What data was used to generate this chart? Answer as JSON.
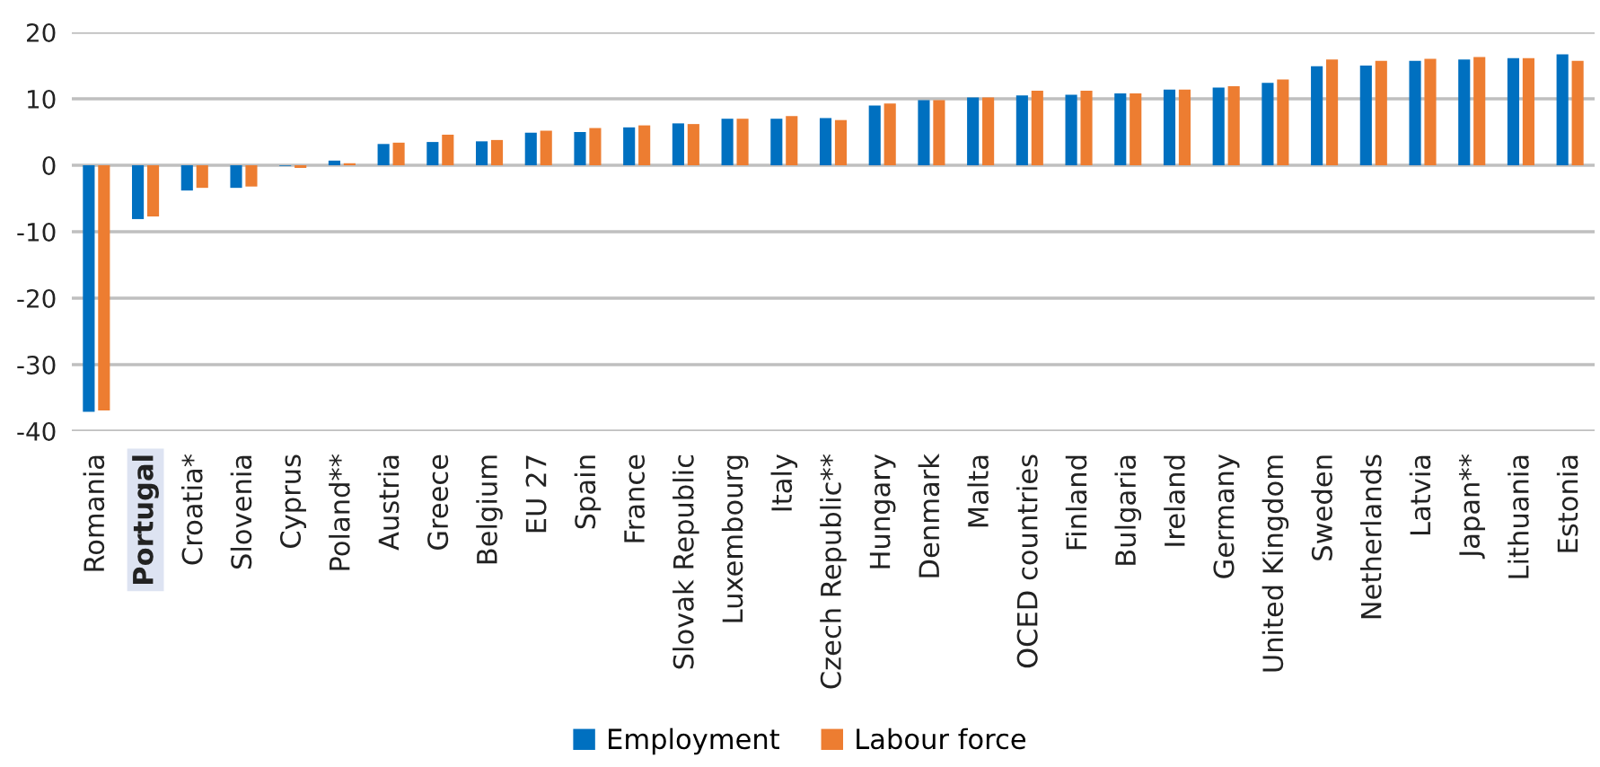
{
  "chart_data": {
    "type": "bar",
    "categories": [
      "Romania",
      "Portugal",
      "Croatia*",
      "Slovenia",
      "Cyprus",
      "Poland**",
      "Austria",
      "Greece",
      "Belgium",
      "EU 27",
      "Spain",
      "France",
      "Slovak Republic",
      "Luxembourg",
      "Italy",
      "Czech Republic**",
      "Hungary",
      "Denmark",
      "Malta",
      "OCED countries",
      "Finland",
      "Bulgaria",
      "Ireland",
      "Germany",
      "United Kingdom",
      "Sweden",
      "Netherlands",
      "Latvia",
      "Japan**",
      "Lithuania",
      "Estonia"
    ],
    "series": [
      {
        "name": "Employment",
        "color": "#0070c0",
        "values": [
          -37.1,
          -8.1,
          -3.8,
          -3.4,
          -0.1,
          0.7,
          3.2,
          3.5,
          3.6,
          4.9,
          5.0,
          5.7,
          6.3,
          7.0,
          7.0,
          7.1,
          9.0,
          9.8,
          10.2,
          10.5,
          10.6,
          10.8,
          11.4,
          11.7,
          12.4,
          14.9,
          15.0,
          15.7,
          15.9,
          16.1,
          16.7
        ]
      },
      {
        "name": "Labour force",
        "color": "#ed7d31",
        "values": [
          -36.9,
          -7.7,
          -3.4,
          -3.2,
          -0.4,
          0.3,
          3.4,
          4.6,
          3.8,
          5.2,
          5.6,
          6.0,
          6.2,
          7.0,
          7.4,
          6.8,
          9.3,
          9.8,
          10.2,
          11.2,
          11.2,
          10.8,
          11.4,
          11.9,
          12.9,
          15.9,
          15.7,
          16.0,
          16.3,
          16.1,
          15.7
        ]
      }
    ],
    "ylim": [
      -40,
      20
    ],
    "yticks": [
      -40,
      -30,
      -20,
      -10,
      0,
      10,
      20
    ],
    "grid": "y",
    "legend": "bottom"
  }
}
